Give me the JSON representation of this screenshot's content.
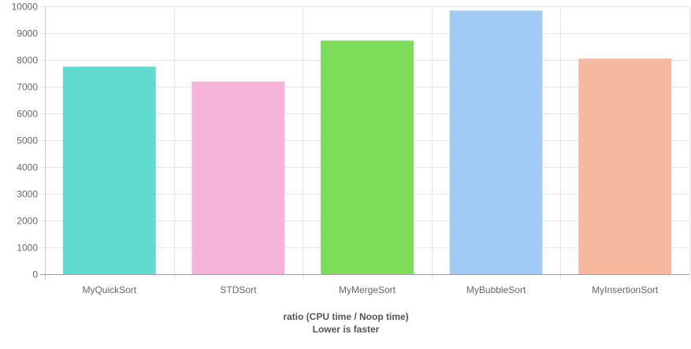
{
  "chart_data": {
    "type": "bar",
    "categories": [
      "MyQuickSort",
      "STDSort",
      "MyMergeSort",
      "MyBubbleSort",
      "MyInsertionSort"
    ],
    "values": [
      7750,
      7190,
      8720,
      9840,
      8050
    ],
    "colors": [
      "#5fdbcf",
      "#f5b3da",
      "#7ddd5a",
      "#a1cbf4",
      "#f6b9a0"
    ],
    "xlabel": [
      "ratio (CPU time / Noop time)",
      "Lower is faster"
    ],
    "ylabel": "",
    "ylim": [
      0,
      10000
    ],
    "yticks": [
      0,
      1000,
      2000,
      3000,
      4000,
      5000,
      6000,
      7000,
      8000,
      9000,
      10000
    ],
    "grid": true,
    "legend": "none"
  }
}
